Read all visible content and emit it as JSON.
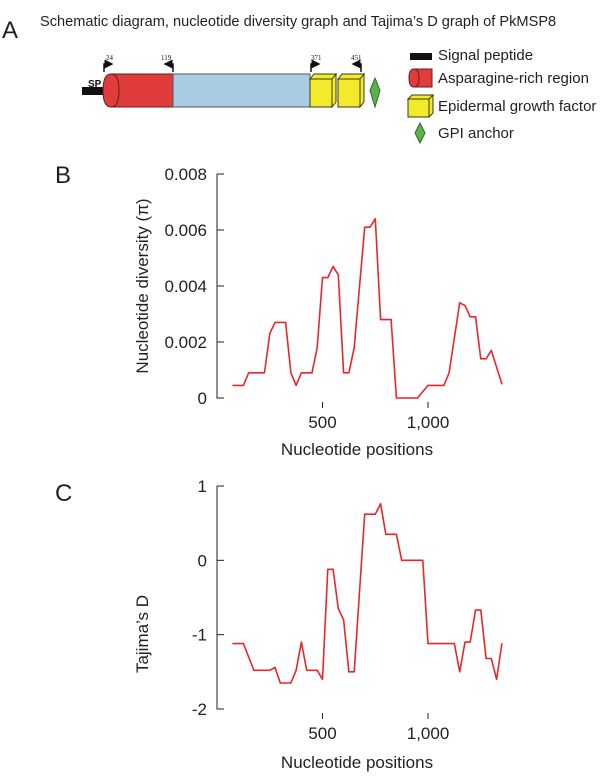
{
  "figure": {
    "panel_a_letter": "A",
    "panel_b_letter": "B",
    "panel_c_letter": "C",
    "title": "Schematic diagram, nucleotide diversity graph and Tajima’s D graph of PkMSP8"
  },
  "schematic": {
    "sp_label": "SP",
    "markers": [
      "24",
      "119",
      "371",
      "451"
    ],
    "colors": {
      "signal_peptide": "#111111",
      "asparagine": "#e03c3c",
      "core": "#a9cce3",
      "egf": "#f2ea2a",
      "gpi": "#5ab24a"
    }
  },
  "legend": {
    "items": [
      {
        "label": "Signal peptide",
        "icon": "black-bar-icon"
      },
      {
        "label": "Asparagine-rich region",
        "icon": "red-cylinder-icon"
      },
      {
        "label": "Epidermal growth factor",
        "icon": "yellow-box-icon"
      },
      {
        "label": "GPI anchor",
        "icon": "green-diamond-icon"
      }
    ]
  },
  "chart_data": [
    {
      "type": "line",
      "panel": "B",
      "xlabel": "Nucleotide positions",
      "ylabel": "Nucleotide diversity (π)",
      "xlim": [
        0,
        1450
      ],
      "ylim": [
        0,
        0.008
      ],
      "xticks": [
        500,
        1000
      ],
      "xtick_labels": [
        "500",
        "1,000"
      ],
      "yticks": [
        0,
        0.002,
        0.004,
        0.006,
        0.008
      ],
      "ytick_labels": [
        "0",
        "0.002",
        "0.004",
        "0.006",
        "0.008"
      ],
      "color": "#e8272a",
      "series": [
        {
          "name": "Nucleotide diversity",
          "x": [
            75,
            125,
            150,
            225,
            250,
            275,
            325,
            350,
            375,
            400,
            425,
            450,
            475,
            500,
            525,
            550,
            575,
            600,
            625,
            650,
            700,
            725,
            750,
            775,
            800,
            825,
            850,
            875,
            900,
            925,
            950,
            1000,
            1050,
            1075,
            1100,
            1150,
            1175,
            1200,
            1225,
            1250,
            1275,
            1300,
            1325,
            1350
          ],
          "values": [
            0.00045,
            0.00045,
            0.0009,
            0.0009,
            0.0023,
            0.0027,
            0.0027,
            0.0009,
            0.00045,
            0.0009,
            0.0009,
            0.0009,
            0.0018,
            0.0043,
            0.0043,
            0.0047,
            0.0044,
            0.0009,
            0.0009,
            0.0018,
            0.0061,
            0.0061,
            0.0064,
            0.0028,
            0.0028,
            0.0028,
            0.0,
            0.0,
            0.0,
            0.0,
            0.0,
            0.00045,
            0.00045,
            0.00045,
            0.0009,
            0.0034,
            0.0033,
            0.0029,
            0.0029,
            0.0014,
            0.0014,
            0.0017,
            0.0011,
            0.0005
          ]
        }
      ]
    },
    {
      "type": "line",
      "panel": "C",
      "xlabel": "Nucleotide positions",
      "ylabel": "Tajima’s D",
      "xlim": [
        0,
        1450
      ],
      "ylim": [
        -2,
        1
      ],
      "xticks": [
        500,
        1000
      ],
      "xtick_labels": [
        "500",
        "1,000"
      ],
      "yticks": [
        -2,
        -1,
        0,
        1
      ],
      "ytick_labels": [
        "-2",
        "-1",
        "0",
        "1"
      ],
      "color": "#e8272a",
      "series": [
        {
          "name": "Tajima's D",
          "x": [
            75,
            125,
            175,
            250,
            275,
            300,
            325,
            350,
            375,
            400,
            425,
            450,
            475,
            500,
            525,
            550,
            575,
            600,
            625,
            650,
            700,
            725,
            750,
            775,
            800,
            825,
            850,
            875,
            900,
            925,
            950,
            975,
            1000,
            1050,
            1075,
            1100,
            1125,
            1150,
            1175,
            1200,
            1225,
            1250,
            1275,
            1300,
            1325,
            1350
          ],
          "values": [
            -1.12,
            -1.12,
            -1.48,
            -1.48,
            -1.44,
            -1.65,
            -1.65,
            -1.65,
            -1.48,
            -1.1,
            -1.48,
            -1.48,
            -1.48,
            -1.6,
            -0.12,
            -0.12,
            -0.65,
            -0.8,
            -1.5,
            -1.5,
            0.62,
            0.62,
            0.62,
            0.76,
            0.35,
            0.35,
            0.35,
            0.0,
            0.0,
            0.0,
            0.0,
            0.0,
            -1.12,
            -1.12,
            -1.12,
            -1.12,
            -1.12,
            -1.5,
            -1.1,
            -1.1,
            -0.67,
            -0.67,
            -1.32,
            -1.32,
            -1.6,
            -1.12
          ]
        }
      ]
    }
  ]
}
